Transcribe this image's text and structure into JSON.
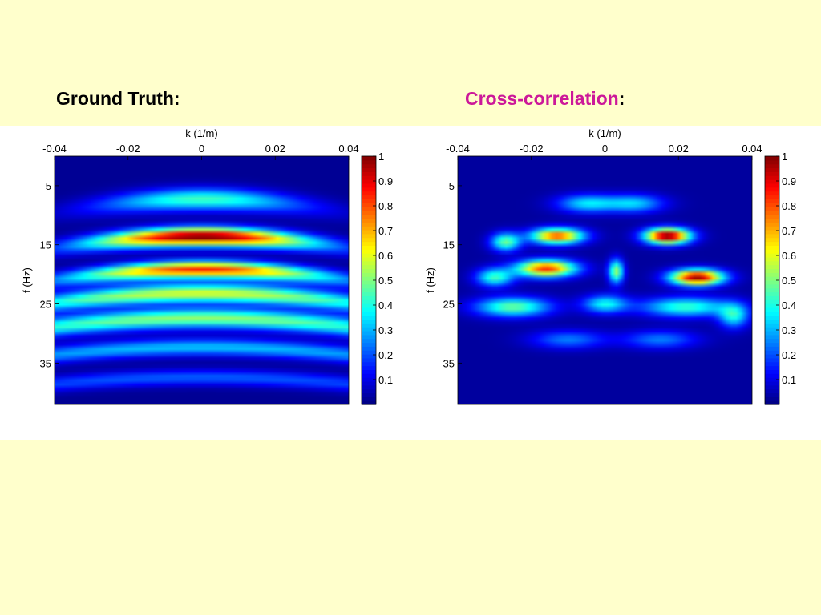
{
  "headings": {
    "left": "Ground Truth:",
    "right_main": "Cross-correlation",
    "right_colon": ":"
  },
  "colors": {
    "slide_background": "#ffffcc",
    "panel_background": "#ffffff",
    "accent_magenta": "#cc1899",
    "colormap": "jet"
  },
  "chart_data": [
    {
      "type": "heatmap",
      "title": "Ground Truth:",
      "xlabel": "k (1/m)",
      "ylabel": "f (Hz)",
      "xlim": [
        -0.04,
        0.04
      ],
      "ylim": [
        0,
        42
      ],
      "x_axis_position": "top",
      "y_axis_direction": "reversed",
      "xticks": [
        -0.04,
        -0.02,
        0,
        0.02,
        0.04
      ],
      "xtick_labels": [
        "-0.04",
        "-0.02",
        "0",
        "0.02",
        "0.04"
      ],
      "yticks": [
        5,
        15,
        25,
        35
      ],
      "ytick_labels": [
        "5",
        "15",
        "25",
        "35"
      ],
      "colorbar": {
        "range": [
          0,
          1
        ],
        "ticks": [
          0.1,
          0.2,
          0.3,
          0.4,
          0.5,
          0.6,
          0.7,
          0.8,
          0.9,
          1
        ],
        "tick_labels": [
          "0.1",
          "0.2",
          "0.3",
          "0.4",
          "0.5",
          "0.6",
          "0.7",
          "0.8",
          "0.9",
          "1"
        ],
        "colormap": "jet"
      },
      "bands": [
        {
          "f0": 7.3,
          "curvature": 1400,
          "width": 1.8,
          "peak": 0.42,
          "k_center": 0,
          "k_spread": 0.028
        },
        {
          "f0": 13.6,
          "curvature": 1200,
          "width": 1.5,
          "peak": 1.0,
          "k_center": 0,
          "k_spread": 0.03
        },
        {
          "f0": 19.2,
          "curvature": 1100,
          "width": 1.4,
          "peak": 0.82,
          "k_center": 0,
          "k_spread": 0.036
        },
        {
          "f0": 23.2,
          "curvature": 1000,
          "width": 1.5,
          "peak": 0.58,
          "k_center": 0,
          "k_spread": 0.06
        },
        {
          "f0": 27.4,
          "curvature": 900,
          "width": 1.6,
          "peak": 0.5,
          "k_center": 0,
          "k_spread": 0.08
        },
        {
          "f0": 32.3,
          "curvature": 800,
          "width": 1.4,
          "peak": 0.3,
          "k_center": 0,
          "k_spread": 0.1
        },
        {
          "f0": 37.4,
          "curvature": 700,
          "width": 1.3,
          "peak": 0.2,
          "k_center": 0,
          "k_spread": 0.1
        }
      ]
    },
    {
      "type": "heatmap",
      "title": "Cross-correlation:",
      "xlabel": "k (1/m)",
      "ylabel": "f (Hz)",
      "xlim": [
        -0.04,
        0.04
      ],
      "ylim": [
        0,
        42
      ],
      "x_axis_position": "top",
      "y_axis_direction": "reversed",
      "xticks": [
        -0.04,
        -0.02,
        0,
        0.02,
        0.04
      ],
      "xtick_labels": [
        "-0.04",
        "-0.02",
        "0",
        "0.02",
        "0.04"
      ],
      "yticks": [
        5,
        15,
        25,
        35
      ],
      "ytick_labels": [
        "5",
        "15",
        "25",
        "35"
      ],
      "colorbar": {
        "range": [
          0,
          1
        ],
        "ticks": [
          0.1,
          0.2,
          0.3,
          0.4,
          0.5,
          0.6,
          0.7,
          0.8,
          0.9,
          1
        ],
        "tick_labels": [
          "0.1",
          "0.2",
          "0.3",
          "0.4",
          "0.5",
          "0.6",
          "0.7",
          "0.8",
          "0.9",
          "1"
        ],
        "colormap": "jet"
      },
      "blobs": [
        {
          "k": -0.013,
          "f": 13.5,
          "sk": 0.007,
          "sf": 1.3,
          "v": 0.78
        },
        {
          "k": 0.017,
          "f": 13.5,
          "sk": 0.006,
          "sf": 1.3,
          "v": 1.0
        },
        {
          "k": -0.016,
          "f": 19.0,
          "sk": 0.008,
          "sf": 1.4,
          "v": 0.8
        },
        {
          "k": 0.025,
          "f": 20.5,
          "sk": 0.007,
          "sf": 1.3,
          "v": 0.95
        },
        {
          "k": -0.027,
          "f": 14.5,
          "sk": 0.004,
          "sf": 1.5,
          "v": 0.45
        },
        {
          "k": 0.003,
          "f": 19.5,
          "sk": 0.002,
          "sf": 2.0,
          "v": 0.5
        },
        {
          "k": -0.005,
          "f": 8.0,
          "sk": 0.008,
          "sf": 1.5,
          "v": 0.32
        },
        {
          "k": 0.008,
          "f": 8.0,
          "sk": 0.008,
          "sf": 1.5,
          "v": 0.3
        },
        {
          "k": -0.025,
          "f": 25.5,
          "sk": 0.01,
          "sf": 1.6,
          "v": 0.45
        },
        {
          "k": 0.022,
          "f": 25.5,
          "sk": 0.012,
          "sf": 1.6,
          "v": 0.4
        },
        {
          "k": 0.0,
          "f": 25.0,
          "sk": 0.006,
          "sf": 1.5,
          "v": 0.35
        },
        {
          "k": -0.03,
          "f": 20.5,
          "sk": 0.005,
          "sf": 1.5,
          "v": 0.4
        },
        {
          "k": 0.035,
          "f": 27.0,
          "sk": 0.004,
          "sf": 2.0,
          "v": 0.35
        },
        {
          "k": -0.01,
          "f": 31.0,
          "sk": 0.01,
          "sf": 1.5,
          "v": 0.22
        },
        {
          "k": 0.015,
          "f": 31.0,
          "sk": 0.01,
          "sf": 1.5,
          "v": 0.22
        }
      ]
    }
  ]
}
